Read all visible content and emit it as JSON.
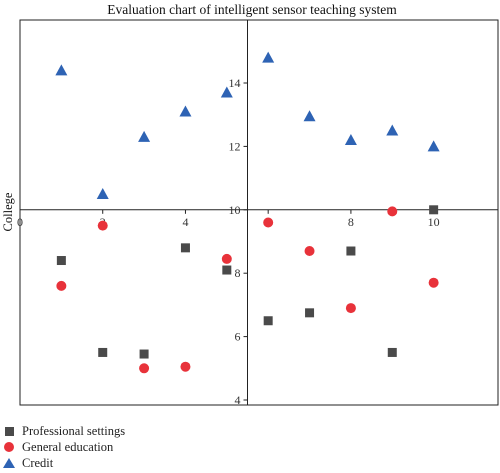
{
  "chart_data": {
    "type": "scatter",
    "title": "Evaluation chart of intelligent sensor teaching system",
    "ylabel": "College",
    "xlabel": "",
    "xlim": [
      0,
      11
    ],
    "ylim": [
      4,
      16
    ],
    "x_ticks": [
      0,
      2,
      4,
      6,
      8,
      10
    ],
    "y_ticks": [
      4,
      6,
      8,
      10,
      12,
      14
    ],
    "grid": false,
    "legend_position": "bottom-left",
    "series": [
      {
        "name": "Professional settings",
        "marker": "square",
        "color": "#4a4a4a",
        "x": [
          1,
          2,
          3,
          4,
          5,
          6,
          7,
          8,
          9,
          10
        ],
        "y": [
          8.4,
          5.5,
          5.45,
          8.8,
          8.1,
          6.5,
          6.75,
          8.7,
          5.5,
          10
        ]
      },
      {
        "name": "General education",
        "marker": "circle",
        "color": "#e8323a",
        "x": [
          1,
          2,
          3,
          4,
          5,
          6,
          7,
          8,
          9,
          10
        ],
        "y": [
          7.6,
          9.5,
          5.0,
          5.05,
          8.45,
          9.6,
          8.7,
          6.9,
          9.95,
          7.7
        ]
      },
      {
        "name": "Credit",
        "marker": "triangle",
        "color": "#2e63b4",
        "x": [
          1,
          2,
          3,
          4,
          5,
          6,
          7,
          8,
          9,
          10
        ],
        "y": [
          14.4,
          10.5,
          12.3,
          13.1,
          13.7,
          14.8,
          12.95,
          12.2,
          12.5,
          12.0
        ]
      }
    ]
  }
}
